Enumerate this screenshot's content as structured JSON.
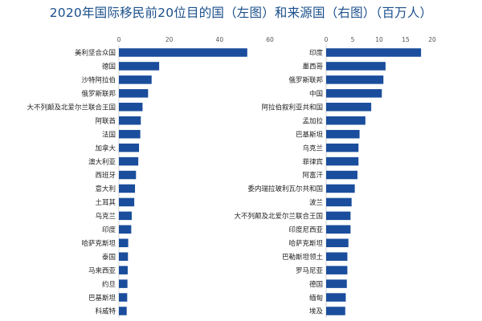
{
  "title": "2020年国际移民前20位目的国（左图）和来源国（右图）（百万人）",
  "colors": {
    "bar": "#1a4d9c",
    "title": "#1a4f8b"
  },
  "chart_data": [
    {
      "type": "bar",
      "orientation": "horizontal",
      "xlim": [
        0,
        60
      ],
      "ticks": [
        0,
        20,
        40,
        60
      ],
      "categories": [
        "美利坚合众国",
        "德国",
        "沙特阿拉伯",
        "俄罗斯联邦",
        "大不列颠及北爱尔兰联合王国",
        "阿联酋",
        "法国",
        "加拿大",
        "澳大利亚",
        "西班牙",
        "意大利",
        "土耳其",
        "乌克兰",
        "印度",
        "哈萨克斯坦",
        "泰国",
        "马来西亚",
        "约旦",
        "巴基斯坦",
        "科威特"
      ],
      "values": [
        51,
        16,
        13,
        11.6,
        9.4,
        8.7,
        8.5,
        8.0,
        7.7,
        6.8,
        6.4,
        6.1,
        5.1,
        4.9,
        3.7,
        3.6,
        3.5,
        3.4,
        3.3,
        3.1
      ]
    },
    {
      "type": "bar",
      "orientation": "horizontal",
      "xlim": [
        0,
        20
      ],
      "ticks": [
        0,
        5,
        10,
        15,
        20
      ],
      "categories": [
        "印度",
        "墨西哥",
        "俄罗斯联邦",
        "中国",
        "阿拉伯叙利亚共和国",
        "孟加拉",
        "巴基斯坦",
        "乌克兰",
        "菲律宾",
        "阿富汗",
        "委内瑞拉玻利瓦尔共和国",
        "波兰",
        "大不列颠及北爱尔兰联合王国",
        "印度尼西亚",
        "哈萨克斯坦",
        "巴勒斯坦领土",
        "罗马尼亚",
        "德国",
        "缅甸",
        "埃及"
      ],
      "values": [
        17.9,
        11.2,
        10.8,
        10.5,
        8.5,
        7.4,
        6.3,
        6.1,
        6.1,
        5.9,
        5.4,
        4.8,
        4.6,
        4.6,
        4.2,
        4.0,
        4.0,
        3.9,
        3.7,
        3.6
      ]
    }
  ]
}
